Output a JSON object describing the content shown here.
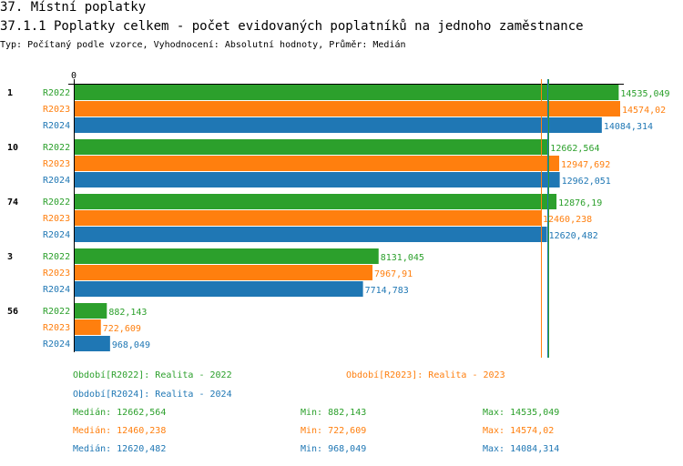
{
  "header": {
    "section": "37. Místní poplatky",
    "title": "37.1.1 Poplatky celkem - počet evidovaných poplatníků na jednoho zaměstnance",
    "subtitle": "Typ: Počítaný podle vzorce, Vyhodnocení: Absolutní hodnoty, Průměr: Medián"
  },
  "chart_data": {
    "type": "bar",
    "orientation": "horizontal",
    "x_tick_label": "0",
    "xlim": [
      0,
      14574.02
    ],
    "categories": [
      "1",
      "10",
      "74",
      "3",
      "56"
    ],
    "series": [
      {
        "name": "R2022",
        "color": "#2ca02c",
        "values": [
          14535.049,
          12662.564,
          12876.19,
          8131.045,
          882.143
        ],
        "labels": [
          "14535,049",
          "12662,564",
          "12876,19",
          "8131,045",
          "882,143"
        ]
      },
      {
        "name": "R2023",
        "color": "#ff7f0e",
        "values": [
          14574.02,
          12947.692,
          12460.238,
          7967.91,
          722.609
        ],
        "labels": [
          "14574,02",
          "12947,692",
          "12460,238",
          "7967,91",
          "722,609"
        ]
      },
      {
        "name": "R2024",
        "color": "#1f77b4",
        "values": [
          14084.314,
          12962.051,
          12620.482,
          7714.783,
          968.049
        ],
        "labels": [
          "14084,314",
          "12962,051",
          "12620,482",
          "7714,783",
          "968,049"
        ]
      }
    ],
    "medians": [
      12662.564,
      12460.238,
      12620.482
    ]
  },
  "legend": [
    {
      "label": "Období[R2022]: Realita - 2022",
      "color": "#2ca02c"
    },
    {
      "label": "Období[R2023]: Realita - 2023",
      "color": "#ff7f0e"
    },
    {
      "label": "Období[R2024]: Realita - 2024",
      "color": "#1f77b4"
    }
  ],
  "stats": [
    {
      "median": "Medián: 12662,564",
      "min": "Min: 882,143",
      "max": "Max: 14535,049",
      "color": "#2ca02c"
    },
    {
      "median": "Medián: 12460,238",
      "min": "Min: 722,609",
      "max": "Max: 14574,02",
      "color": "#ff7f0e"
    },
    {
      "median": "Medián: 12620,482",
      "min": "Min: 968,049",
      "max": "Max: 14084,314",
      "color": "#1f77b4"
    }
  ]
}
